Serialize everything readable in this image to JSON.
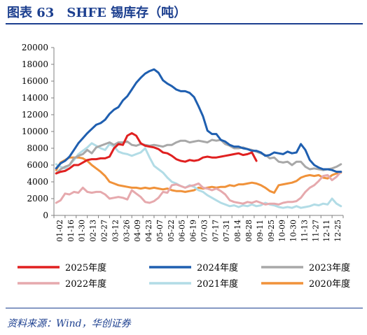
{
  "title": "图表 63　SHFE 锡库存（吨）",
  "source": "资料来源：Wind，华创证券",
  "chart_data": {
    "type": "line",
    "title": "图表 63　SHFE 锡库存（吨）",
    "ylabel": "",
    "xlabel": "",
    "ylim": [
      0,
      20000
    ],
    "yticks": [
      0,
      2000,
      4000,
      6000,
      8000,
      10000,
      12000,
      14000,
      16000,
      18000,
      20000
    ],
    "ytick_labels": [
      "0",
      "2000",
      "4000",
      "6000",
      "8000",
      "10000",
      "12000",
      "14000",
      "16000",
      "18000",
      "20000"
    ],
    "xticks": [
      "01-02",
      "01-16",
      "01-30",
      "02-13",
      "02-27",
      "03-12",
      "03-26",
      "04-09",
      "04-23",
      "05-07",
      "05-22",
      "06-05",
      "06-19",
      "07-03",
      "07-17",
      "07-31",
      "08-14",
      "08-28",
      "09-11",
      "09-25",
      "10-09",
      "10-30",
      "11-13",
      "11-27",
      "12-11",
      "12-25"
    ],
    "grid": false,
    "legend_position": "bottom",
    "series": [
      {
        "name": "2025年度",
        "color": "#e02020",
        "width": 3,
        "x": [
          0.2,
          0.6,
          1.0,
          1.4,
          1.8,
          2.2,
          2.6,
          3.0,
          3.4,
          3.8,
          4.2,
          4.6,
          5.0,
          5.4,
          5.8,
          6.2,
          6.6,
          7.0,
          7.4,
          7.8,
          8.2,
          8.6,
          9.0,
          9.4,
          9.8,
          10.2,
          10.6,
          11.0,
          11.4,
          11.8,
          12.2,
          12.6,
          13.0,
          13.4,
          13.8,
          14.2,
          14.6,
          15.0,
          15.4,
          15.8,
          16.2,
          16.6,
          17.0,
          17.4,
          17.8,
          18.2
        ],
        "values": [
          5000,
          5200,
          5300,
          5600,
          6000,
          6000,
          6300,
          6600,
          6700,
          6700,
          6800,
          6800,
          7000,
          8000,
          8500,
          8400,
          9500,
          9800,
          9500,
          8600,
          8300,
          8200,
          8100,
          7900,
          7500,
          7400,
          7100,
          6700,
          6500,
          6400,
          6600,
          6500,
          6600,
          6900,
          7000,
          6900,
          6900,
          7000,
          7100,
          7200,
          7300,
          7400,
          7200,
          7300,
          7500,
          6500
        ]
      },
      {
        "name": "2024年度",
        "color": "#1f5fb0",
        "width": 3,
        "x": [
          0.2,
          0.6,
          1.0,
          1.4,
          1.8,
          2.2,
          2.6,
          3.0,
          3.4,
          3.8,
          4.2,
          4.6,
          5.0,
          5.4,
          5.8,
          6.2,
          6.6,
          7.0,
          7.4,
          7.8,
          8.2,
          8.6,
          9.0,
          9.4,
          9.8,
          10.2,
          10.6,
          11.0,
          11.4,
          11.8,
          12.2,
          12.6,
          13.0,
          13.4,
          13.8,
          14.2,
          14.6,
          15.0,
          15.4,
          15.8,
          16.2,
          16.6,
          17.0,
          17.4,
          17.8,
          18.2,
          18.6,
          19.0,
          19.4,
          19.8,
          20.2,
          20.6,
          21.0,
          21.4,
          21.8,
          22.2,
          22.6,
          23.0,
          23.4,
          23.8,
          24.2,
          24.6,
          25.0,
          25.4,
          25.8
        ],
        "values": [
          5600,
          6200,
          6500,
          7000,
          7800,
          8600,
          9200,
          9800,
          10300,
          10800,
          11000,
          11400,
          12100,
          12600,
          12900,
          13700,
          14200,
          15000,
          15800,
          16400,
          16900,
          17200,
          17400,
          17000,
          16100,
          15700,
          15400,
          15000,
          14800,
          14800,
          14600,
          14100,
          13000,
          11800,
          10100,
          9700,
          9700,
          9000,
          8800,
          8400,
          8200,
          8200,
          8000,
          7900,
          7700,
          7700,
          7500,
          7100,
          7200,
          7500,
          7400,
          7300,
          7600,
          7400,
          7500,
          8500,
          7800,
          6600,
          6000,
          5700,
          5500,
          5500,
          5400,
          5200,
          5200
        ]
      },
      {
        "name": "2023年度",
        "color": "#a8a8a8",
        "width": 3,
        "x": [
          0.2,
          0.6,
          1.0,
          1.4,
          1.8,
          2.2,
          2.6,
          3.0,
          3.4,
          3.8,
          4.2,
          4.6,
          5.0,
          5.4,
          5.8,
          6.2,
          6.6,
          7.0,
          7.4,
          7.8,
          8.2,
          8.6,
          9.0,
          9.4,
          9.8,
          10.2,
          10.6,
          11.0,
          11.4,
          11.8,
          12.2,
          12.6,
          13.0,
          13.4,
          13.8,
          14.2,
          14.6,
          15.0,
          15.4,
          15.8,
          16.2,
          16.6,
          17.0,
          17.4,
          17.8,
          18.2,
          18.6,
          19.0,
          19.4,
          19.8,
          20.2,
          20.6,
          21.0,
          21.4,
          21.8,
          22.2,
          22.6,
          23.0,
          23.4,
          23.8,
          24.2,
          24.6,
          25.0,
          25.4,
          25.8
        ],
        "values": [
          5000,
          5500,
          5800,
          6000,
          6800,
          7100,
          7300,
          7800,
          7400,
          8100,
          8300,
          8500,
          8700,
          8400,
          8700,
          8700,
          8800,
          8400,
          8300,
          8500,
          8400,
          8300,
          8400,
          8300,
          8200,
          8400,
          8400,
          8700,
          8900,
          8900,
          8700,
          8800,
          8900,
          8800,
          8700,
          9000,
          8900,
          9000,
          8500,
          8300,
          8000,
          8000,
          8100,
          7900,
          7800,
          7600,
          7400,
          7200,
          6800,
          6900,
          6400,
          6300,
          6400,
          6000,
          6400,
          6400,
          5800,
          5500,
          5600,
          5500,
          5400,
          5500,
          5600,
          5800,
          6100
        ]
      },
      {
        "name": "2022年度",
        "color": "#e6a9ad",
        "width": 3,
        "x": [
          0.2,
          0.6,
          1.0,
          1.4,
          1.8,
          2.2,
          2.6,
          3.0,
          3.4,
          3.8,
          4.2,
          4.6,
          5.0,
          5.4,
          5.8,
          6.2,
          6.6,
          7.0,
          7.4,
          7.8,
          8.2,
          8.6,
          9.0,
          9.4,
          9.8,
          10.2,
          10.6,
          11.0,
          11.4,
          11.8,
          12.2,
          12.6,
          13.0,
          13.4,
          13.8,
          14.2,
          14.6,
          15.0,
          15.4,
          15.8,
          16.2,
          16.6,
          17.0,
          17.4,
          17.8,
          18.2,
          18.6,
          19.0,
          19.4,
          19.8,
          20.2,
          20.6,
          21.0,
          21.4,
          21.8,
          22.2,
          22.6,
          23.0,
          23.4,
          23.8,
          24.2,
          24.6,
          25.0,
          25.4,
          25.8
        ],
        "values": [
          1500,
          1800,
          2600,
          2500,
          2800,
          2700,
          3300,
          2800,
          2700,
          2800,
          2800,
          2500,
          2000,
          2100,
          2200,
          2100,
          1900,
          3000,
          2600,
          2200,
          1600,
          1500,
          1700,
          2100,
          2800,
          2700,
          3600,
          3700,
          3500,
          3300,
          3500,
          3600,
          3800,
          3300,
          3200,
          3000,
          3200,
          2900,
          2500,
          1800,
          1600,
          1500,
          1400,
          1600,
          1500,
          1700,
          1500,
          1300,
          1400,
          1400,
          1300,
          1500,
          1600,
          1600,
          1700,
          2100,
          2800,
          3300,
          3600,
          4100,
          4700,
          4800,
          4200,
          4600,
          5200
        ]
      },
      {
        "name": "2021年度",
        "color": "#b2dce6",
        "width": 3,
        "x": [
          0.2,
          0.6,
          1.0,
          1.4,
          1.8,
          2.2,
          2.6,
          3.0,
          3.4,
          3.8,
          4.2,
          4.6,
          5.0,
          5.4,
          5.8,
          6.2,
          6.6,
          7.0,
          7.4,
          7.8,
          8.2,
          8.6,
          9.0,
          9.4,
          9.8,
          10.2,
          10.6,
          11.0,
          11.4,
          11.8,
          12.2,
          12.6,
          13.0,
          13.4,
          13.8,
          14.2,
          14.6,
          15.0,
          15.4,
          15.8,
          16.2,
          16.6,
          17.0,
          17.4,
          17.8,
          18.2,
          18.6,
          19.0,
          19.4,
          19.8,
          20.2,
          20.6,
          21.0,
          21.4,
          21.8,
          22.2,
          22.6,
          23.0,
          23.4,
          23.8,
          24.2,
          24.6,
          25.0,
          25.4,
          25.8
        ],
        "values": [
          6100,
          5800,
          5600,
          6000,
          6600,
          7300,
          7700,
          8100,
          8600,
          8300,
          8000,
          7800,
          8500,
          8200,
          7600,
          7400,
          7300,
          7100,
          7300,
          7500,
          8000,
          6900,
          5900,
          5500,
          5100,
          4500,
          4000,
          3800,
          3500,
          3300,
          3600,
          3400,
          3000,
          2800,
          2400,
          2100,
          1800,
          1500,
          1300,
          1100,
          1200,
          1000,
          1200,
          1100,
          1300,
          1100,
          1200,
          1500,
          1300,
          1200,
          1000,
          900,
          1000,
          900,
          1100,
          900,
          1000,
          1100,
          1300,
          1200,
          1400,
          1300,
          2000,
          1400,
          1100
        ]
      },
      {
        "name": "2020年度",
        "color": "#f0923a",
        "width": 3,
        "x": [
          0.2,
          0.6,
          1.0,
          1.4,
          1.8,
          2.2,
          2.6,
          3.0,
          3.4,
          3.8,
          4.2,
          4.6,
          5.0,
          5.4,
          5.8,
          6.2,
          6.6,
          7.0,
          7.4,
          7.8,
          8.2,
          8.6,
          9.0,
          9.4,
          9.8,
          10.2,
          10.6,
          11.0,
          11.4,
          11.8,
          12.2,
          12.6,
          13.0,
          13.4,
          13.8,
          14.2,
          14.6,
          15.0,
          15.4,
          15.8,
          16.2,
          16.6,
          17.0,
          17.4,
          17.8,
          18.2,
          18.6,
          19.0,
          19.4,
          19.8,
          20.2,
          20.6,
          21.0,
          21.4,
          21.8,
          22.2,
          22.6,
          23.0,
          23.4,
          23.8,
          24.2,
          24.6,
          25.0,
          25.4,
          25.8
        ],
        "values": [
          5400,
          6300,
          6600,
          6900,
          6900,
          6900,
          6800,
          6500,
          6000,
          5600,
          5200,
          4700,
          4000,
          3800,
          3600,
          3500,
          3400,
          3300,
          3300,
          3200,
          3300,
          3200,
          3300,
          3200,
          3100,
          3200,
          3000,
          2900,
          2900,
          2800,
          2900,
          3000,
          3300,
          3200,
          3300,
          3400,
          3300,
          3400,
          3400,
          3600,
          3500,
          3700,
          3700,
          3800,
          3900,
          3800,
          3600,
          3300,
          2900,
          2700,
          3600,
          3700,
          3800,
          3900,
          4100,
          4500,
          4700,
          4800,
          4700,
          4800,
          4500,
          4400,
          4800,
          5000,
          5100
        ]
      }
    ]
  }
}
